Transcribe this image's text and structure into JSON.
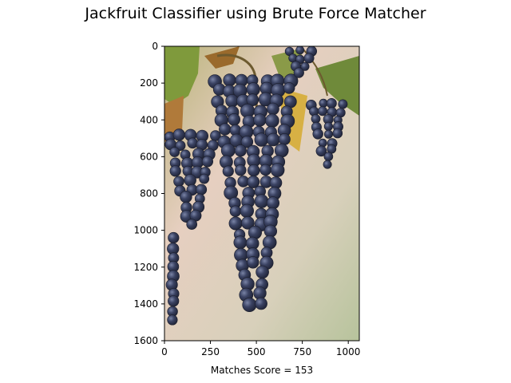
{
  "chart_data": {
    "type": "image",
    "title": "Jackfruit Classifier using Brute Force Matcher",
    "xlabel": "Matches Score =  153",
    "ylabel": "",
    "xlim": [
      0,
      1060
    ],
    "ylim": [
      1600,
      0
    ],
    "x_ticks": [
      0,
      250,
      500,
      750,
      1000
    ],
    "y_ticks": [
      0,
      200,
      400,
      600,
      800,
      1000,
      1200,
      1400,
      1600
    ],
    "image_subject": "grapes-photo",
    "colors": {
      "grape": "#2f3550",
      "grape_highlight": "#6a7494",
      "leaf": "#7f9a3c",
      "background_blur": "#d9cdb6"
    }
  }
}
